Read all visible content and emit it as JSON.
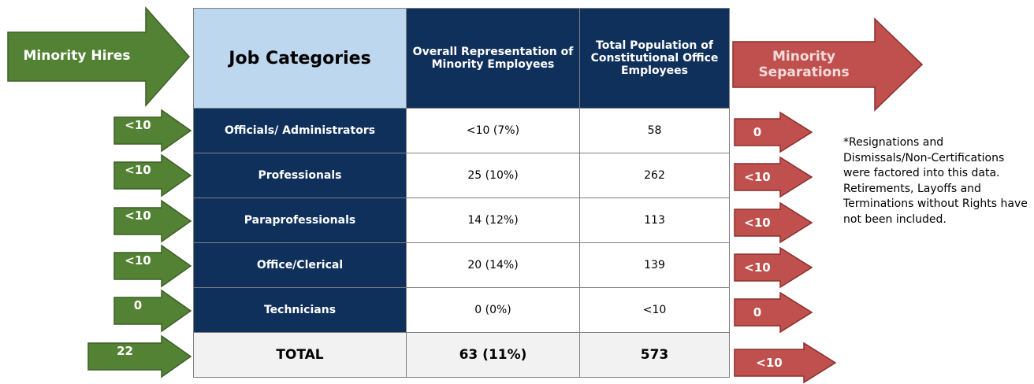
{
  "left_header": "Minority Hires",
  "right_header": "Minority Separations",
  "table": {
    "headers": [
      "Job Categories",
      "Overall Representation of Minority Employees",
      "Total Population of Constitutional Office Employees"
    ],
    "rows": [
      [
        "Officials/ Administrators",
        "<10 (7%)",
        "58"
      ],
      [
        "Professionals",
        "25 (10%)",
        "262"
      ],
      [
        "Paraprofessionals",
        "14 (12%)",
        "113"
      ],
      [
        "Office/Clerical",
        "20 (14%)",
        "139"
      ],
      [
        "Technicians",
        "0 (0%)",
        "<10"
      ],
      [
        "TOTAL",
        "63 (11%)",
        "573"
      ]
    ]
  },
  "hires": [
    "<10",
    "<10",
    "<10",
    "<10",
    "0",
    "22"
  ],
  "separations": [
    "0",
    "<10",
    "<10",
    "<10",
    "0",
    "<10"
  ],
  "note": "*Resignations and Dismissals/Non-Certifications were factored into this data. Retirements, Layoffs and Terminations without  Rights have not been included."
}
